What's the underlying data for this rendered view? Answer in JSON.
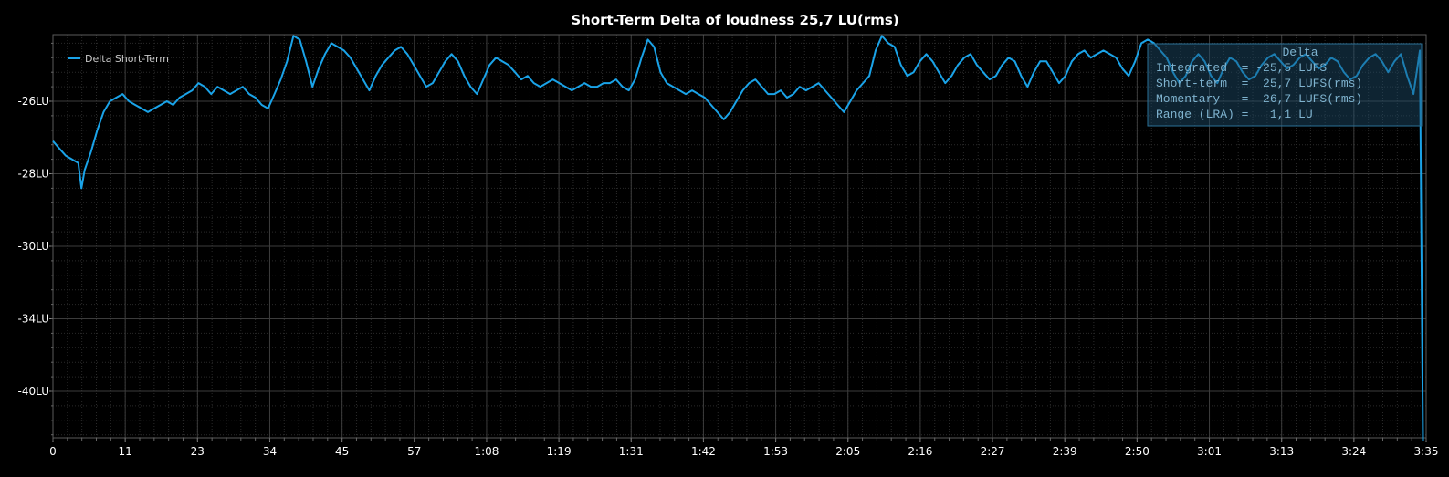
{
  "chart_data": {
    "type": "line",
    "title": "Short-Term Delta of loudness 25,7 LU(rms)",
    "xlabel": "",
    "ylabel": "",
    "y_tick_labels": [
      "-26LU",
      "-28LU",
      "-30LU",
      "-34LU",
      "-40LU"
    ],
    "x_tick_labels": [
      "0",
      "11",
      "23",
      "34",
      "45",
      "57",
      "1:08",
      "1:19",
      "1:31",
      "1:42",
      "1:53",
      "2:05",
      "2:16",
      "2:27",
      "2:39",
      "2:50",
      "3:01",
      "3:13",
      "3:24",
      "3:35"
    ],
    "xlim_seconds": [
      0,
      217
    ],
    "grid": true,
    "legend_position": "top-left",
    "series": [
      {
        "name": "Delta Short-Term",
        "color": "#1aa3e8",
        "points": [
          [
            0,
            27.1
          ],
          [
            1,
            27.3
          ],
          [
            2,
            27.5
          ],
          [
            3,
            27.6
          ],
          [
            4,
            27.7
          ],
          [
            4.5,
            28.4
          ],
          [
            5,
            27.9
          ],
          [
            6,
            27.4
          ],
          [
            7,
            26.8
          ],
          [
            8,
            26.3
          ],
          [
            9,
            26.0
          ],
          [
            10,
            25.9
          ],
          [
            11,
            25.8
          ],
          [
            12,
            26.0
          ],
          [
            13,
            26.1
          ],
          [
            14,
            26.2
          ],
          [
            15,
            26.3
          ],
          [
            16,
            26.2
          ],
          [
            17,
            26.1
          ],
          [
            18,
            26.0
          ],
          [
            19,
            26.1
          ],
          [
            20,
            25.9
          ],
          [
            21,
            25.8
          ],
          [
            22,
            25.7
          ],
          [
            23,
            25.5
          ],
          [
            24,
            25.6
          ],
          [
            25,
            25.8
          ],
          [
            26,
            25.6
          ],
          [
            27,
            25.7
          ],
          [
            28,
            25.8
          ],
          [
            29,
            25.7
          ],
          [
            30,
            25.6
          ],
          [
            31,
            25.8
          ],
          [
            32,
            25.9
          ],
          [
            33,
            26.1
          ],
          [
            34,
            26.2
          ],
          [
            35,
            25.8
          ],
          [
            36,
            25.4
          ],
          [
            37,
            24.9
          ],
          [
            38,
            24.2
          ],
          [
            39,
            24.3
          ],
          [
            40,
            24.9
          ],
          [
            41,
            25.6
          ],
          [
            42,
            25.1
          ],
          [
            43,
            24.7
          ],
          [
            44,
            24.4
          ],
          [
            45,
            24.5
          ],
          [
            46,
            24.6
          ],
          [
            47,
            24.8
          ],
          [
            48,
            25.1
          ],
          [
            49,
            25.4
          ],
          [
            50,
            25.7
          ],
          [
            51,
            25.3
          ],
          [
            52,
            25.0
          ],
          [
            53,
            24.8
          ],
          [
            54,
            24.6
          ],
          [
            55,
            24.5
          ],
          [
            56,
            24.7
          ],
          [
            57,
            25.0
          ],
          [
            58,
            25.3
          ],
          [
            59,
            25.6
          ],
          [
            60,
            25.5
          ],
          [
            61,
            25.2
          ],
          [
            62,
            24.9
          ],
          [
            63,
            24.7
          ],
          [
            64,
            24.9
          ],
          [
            65,
            25.3
          ],
          [
            66,
            25.6
          ],
          [
            67,
            25.8
          ],
          [
            68,
            25.4
          ],
          [
            69,
            25.0
          ],
          [
            70,
            24.8
          ],
          [
            71,
            24.9
          ],
          [
            72,
            25.0
          ],
          [
            73,
            25.2
          ],
          [
            74,
            25.4
          ],
          [
            75,
            25.3
          ],
          [
            76,
            25.5
          ],
          [
            77,
            25.6
          ],
          [
            78,
            25.5
          ],
          [
            79,
            25.4
          ],
          [
            80,
            25.5
          ],
          [
            81,
            25.6
          ],
          [
            82,
            25.7
          ],
          [
            83,
            25.6
          ],
          [
            84,
            25.5
          ],
          [
            85,
            25.6
          ],
          [
            86,
            25.6
          ],
          [
            87,
            25.5
          ],
          [
            88,
            25.5
          ],
          [
            89,
            25.4
          ],
          [
            90,
            25.6
          ],
          [
            91,
            25.7
          ],
          [
            92,
            25.4
          ],
          [
            93,
            24.8
          ],
          [
            94,
            24.3
          ],
          [
            95,
            24.5
          ],
          [
            96,
            25.2
          ],
          [
            97,
            25.5
          ],
          [
            98,
            25.6
          ],
          [
            99,
            25.7
          ],
          [
            100,
            25.8
          ],
          [
            101,
            25.7
          ],
          [
            102,
            25.8
          ],
          [
            103,
            25.9
          ],
          [
            104,
            26.1
          ],
          [
            105,
            26.3
          ],
          [
            106,
            26.5
          ],
          [
            107,
            26.3
          ],
          [
            108,
            26.0
          ],
          [
            109,
            25.7
          ],
          [
            110,
            25.5
          ],
          [
            111,
            25.4
          ],
          [
            112,
            25.6
          ],
          [
            113,
            25.8
          ],
          [
            114,
            25.8
          ],
          [
            115,
            25.7
          ],
          [
            116,
            25.9
          ],
          [
            117,
            25.8
          ],
          [
            118,
            25.6
          ],
          [
            119,
            25.7
          ],
          [
            120,
            25.6
          ],
          [
            121,
            25.5
          ],
          [
            122,
            25.7
          ],
          [
            123,
            25.9
          ],
          [
            124,
            26.1
          ],
          [
            125,
            26.3
          ],
          [
            126,
            26.0
          ],
          [
            127,
            25.7
          ],
          [
            128,
            25.5
          ],
          [
            129,
            25.3
          ],
          [
            130,
            24.6
          ],
          [
            131,
            24.2
          ],
          [
            132,
            24.4
          ],
          [
            133,
            24.5
          ],
          [
            134,
            25.0
          ],
          [
            135,
            25.3
          ],
          [
            136,
            25.2
          ],
          [
            137,
            24.9
          ],
          [
            138,
            24.7
          ],
          [
            139,
            24.9
          ],
          [
            140,
            25.2
          ],
          [
            141,
            25.5
          ],
          [
            142,
            25.3
          ],
          [
            143,
            25.0
          ],
          [
            144,
            24.8
          ],
          [
            145,
            24.7
          ],
          [
            146,
            25.0
          ],
          [
            147,
            25.2
          ],
          [
            148,
            25.4
          ],
          [
            149,
            25.3
          ],
          [
            150,
            25.0
          ],
          [
            151,
            24.8
          ],
          [
            152,
            24.9
          ],
          [
            153,
            25.3
          ],
          [
            154,
            25.6
          ],
          [
            155,
            25.2
          ],
          [
            156,
            24.9
          ],
          [
            157,
            24.9
          ],
          [
            158,
            25.2
          ],
          [
            159,
            25.5
          ],
          [
            160,
            25.3
          ],
          [
            161,
            24.9
          ],
          [
            162,
            24.7
          ],
          [
            163,
            24.6
          ],
          [
            164,
            24.8
          ],
          [
            165,
            24.7
          ],
          [
            166,
            24.6
          ],
          [
            167,
            24.7
          ],
          [
            168,
            24.8
          ],
          [
            169,
            25.1
          ],
          [
            170,
            25.3
          ],
          [
            171,
            24.9
          ],
          [
            172,
            24.4
          ],
          [
            173,
            24.3
          ],
          [
            174,
            24.4
          ],
          [
            175,
            24.6
          ],
          [
            176,
            24.8
          ],
          [
            177,
            25.2
          ],
          [
            178,
            25.5
          ],
          [
            179,
            25.3
          ],
          [
            180,
            24.9
          ],
          [
            181,
            24.7
          ],
          [
            182,
            24.9
          ],
          [
            183,
            25.3
          ],
          [
            184,
            25.5
          ],
          [
            185,
            25.1
          ],
          [
            186,
            24.8
          ],
          [
            187,
            24.9
          ],
          [
            188,
            25.2
          ],
          [
            189,
            25.4
          ],
          [
            190,
            25.3
          ],
          [
            191,
            25.0
          ],
          [
            192,
            24.8
          ],
          [
            193,
            24.7
          ],
          [
            194,
            24.9
          ],
          [
            195,
            25.1
          ],
          [
            196,
            25.0
          ],
          [
            197,
            24.8
          ],
          [
            198,
            24.7
          ],
          [
            199,
            24.9
          ],
          [
            200,
            25.1
          ],
          [
            201,
            25.0
          ],
          [
            202,
            24.8
          ],
          [
            203,
            24.9
          ],
          [
            204,
            25.2
          ],
          [
            205,
            25.4
          ],
          [
            206,
            25.3
          ],
          [
            207,
            25.0
          ],
          [
            208,
            24.8
          ],
          [
            209,
            24.7
          ],
          [
            210,
            24.9
          ],
          [
            211,
            25.2
          ],
          [
            212,
            24.9
          ],
          [
            213,
            24.7
          ],
          [
            214,
            25.3
          ],
          [
            215,
            25.8
          ],
          [
            216,
            24.6
          ],
          [
            216.5,
            45.5
          ]
        ]
      }
    ]
  },
  "stats_box": {
    "header": "Delta",
    "rows": [
      "Integrated  = -25,5 LUFS",
      "Short-term  =  25,7 LUFS(rms)",
      "Momentary   =  26,7 LUFS(rms)",
      "Range (LRA) =   1,1 LU"
    ]
  }
}
